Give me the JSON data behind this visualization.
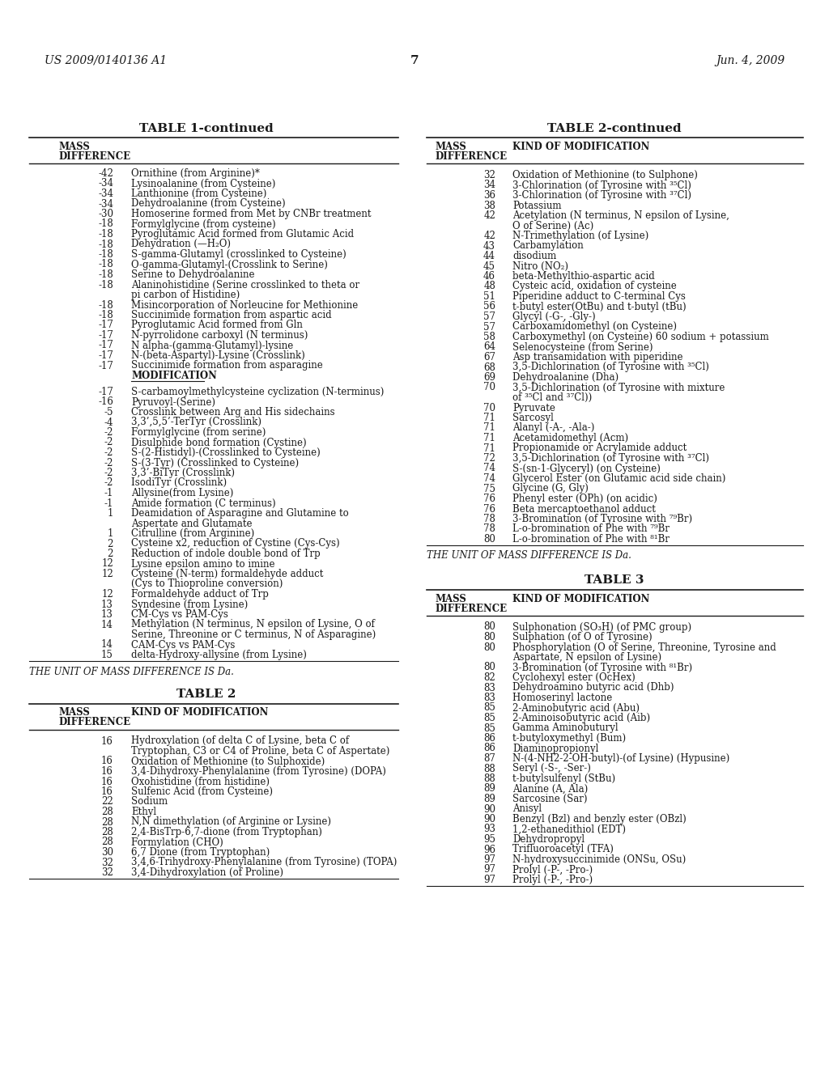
{
  "header_left": "US 2009/0140136 A1",
  "header_center": "7",
  "header_right": "Jun. 4, 2009",
  "bg_color": "#ffffff",
  "table1_continued_title": "TABLE 1-continued",
  "table1_col1_header": "MASS\nDIFFERENCE",
  "table1_rows": [
    [
      "-42",
      "Ornithine (from Arginine)*"
    ],
    [
      "-34",
      "Lysinoalanine (from Cysteine)"
    ],
    [
      "-34",
      "Lanthionine (from Cysteine)"
    ],
    [
      "-34",
      "Dehydroalanine (from Cysteine)"
    ],
    [
      "-30",
      "Homoserine formed from Met by CNBr treatment"
    ],
    [
      "-18",
      "Formylglycine (from cysteine)"
    ],
    [
      "-18",
      "Pyroglutamic Acid formed from Glutamic Acid"
    ],
    [
      "-18",
      "Dehydration (—H₂O)"
    ],
    [
      "-18",
      "S-gamma-Glutamyl (crosslinked to Cysteine)"
    ],
    [
      "-18",
      "O-gamma-Glutamyl-(Crosslink to Serine)"
    ],
    [
      "-18",
      "Serine to Dehydroalanine"
    ],
    [
      "-18",
      "Alaninohistidine (Serine crosslinked to theta or\npi carbon of Histidine)"
    ],
    [
      "-18",
      "Misincorporation of Norleucine for Methionine"
    ],
    [
      "-18",
      "Succinimide formation from aspartic acid"
    ],
    [
      "-17",
      "Pyroglutamic Acid formed from Gln"
    ],
    [
      "-17",
      "N-pyrrolidone carboxyl (N terminus)"
    ],
    [
      "-17",
      "N alpha-(gamma-Glutamyl)-lysine"
    ],
    [
      "-17",
      "N-(beta-Aspartyl)-Lysine (Crosslink)"
    ],
    [
      "-17",
      "Succinimide formation from asparagine"
    ],
    [
      "MOD",
      "MODIFICATION"
    ],
    [
      "BLANK",
      ""
    ],
    [
      "-17",
      "S-carbamoylmethylcysteine cyclization (N-terminus)"
    ],
    [
      "-16",
      "Pyruvoyl-(Serine)"
    ],
    [
      "-5",
      "Crosslink between Arg and His sidechains"
    ],
    [
      "-4",
      "3,3’,5,5’-TerTyr (Crosslink)"
    ],
    [
      "-2",
      "Formylglycine (from serine)"
    ],
    [
      "-2",
      "Disulphide bond formation (Cystine)"
    ],
    [
      "-2",
      "S-(2-Histidyl)-(Crosslinked to Cysteine)"
    ],
    [
      "-2",
      "S-(3-Tyr) (Crosslinked to Cysteine)"
    ],
    [
      "-2",
      "3,3’-BiTyr (Crosslink)"
    ],
    [
      "-2",
      "IsodiTyr (Crosslink)"
    ],
    [
      "-1",
      "Allysine(from Lysine)"
    ],
    [
      "-1",
      "Amide formation (C terminus)"
    ],
    [
      "1",
      "Deamidation of Asparagine and Glutamine to\nAspertate and Glutamate"
    ],
    [
      "1",
      "Citrulline (from Arginine)"
    ],
    [
      "2",
      "Cysteine x2, reduction of Cystine (Cys-Cys)"
    ],
    [
      "2",
      "Reduction of indole double bond of Trp"
    ],
    [
      "12",
      "Lysine epsilon amino to imine"
    ],
    [
      "12",
      "Cysteine (N-term) formaldehyde adduct\n(Cys to Thioproline conversion)"
    ],
    [
      "12",
      "Formaldehyde adduct of Trp"
    ],
    [
      "13",
      "Syndesine (from Lysine)"
    ],
    [
      "13",
      "CM-Cys vs PAM-Cys"
    ],
    [
      "14",
      "Methylation (N terminus, N epsilon of Lysine, O of\nSerine, Threonine or C terminus, N of Asparagine)"
    ],
    [
      "14",
      "CAM-Cys vs PAM-Cys"
    ],
    [
      "15",
      "delta-Hydroxy-allysine (from Lysine)"
    ]
  ],
  "table1_footer": "THE UNIT OF MASS DIFFERENCE IS Da.",
  "table2_title": "TABLE 2",
  "table2_col1_header": "MASS\nDIFFERENCE",
  "table2_col2_header": "KIND OF MODIFICATION",
  "table2_rows": [
    [
      "16",
      "Hydroxylation (of delta C of Lysine, beta C of\nTryptophan, C3 or C4 of Proline, beta C of Aspertate)"
    ],
    [
      "16",
      "Oxidation of Methionine (to Sulphoxide)"
    ],
    [
      "16",
      "3,4-Dihydroxy-Phenylalanine (from Tyrosine) (DOPA)"
    ],
    [
      "16",
      "Oxohistidine (from histidine)"
    ],
    [
      "16",
      "Sulfenic Acid (from Cysteine)"
    ],
    [
      "22",
      "Sodium"
    ],
    [
      "28",
      "Ethyl"
    ],
    [
      "28",
      "N,N dimethylation (of Arginine or Lysine)"
    ],
    [
      "28",
      "2,4-BisTrp-6,7-dione (from Tryptophan)"
    ],
    [
      "28",
      "Formylation (CHO)"
    ],
    [
      "30",
      "6,7 Dione (from Tryptophan)"
    ],
    [
      "32",
      "3,4,6-Trihydroxy-Phenylalanine (from Tyrosine) (TOPA)"
    ],
    [
      "32",
      "3,4-Dihydroxylation (of Proline)"
    ]
  ],
  "table2_continued_title": "TABLE 2-continued",
  "table2_continued_col1_header": "MASS\nDIFFERENCE",
  "table2_continued_col2_header": "KIND OF MODIFICATION",
  "table2_continued_rows": [
    [
      "32",
      "Oxidation of Methionine (to Sulphone)"
    ],
    [
      "34",
      "3-Chlorination (of Tyrosine with ³⁵Cl)"
    ],
    [
      "36",
      "3-Chlorination (of Tyrosine with ³⁷Cl)"
    ],
    [
      "38",
      "Potassium"
    ],
    [
      "42",
      "Acetylation (N terminus, N epsilon of Lysine,\nO of Serine) (Ac)"
    ],
    [
      "42",
      "N-Trimethylation (of Lysine)"
    ],
    [
      "43",
      "Carbamylation"
    ],
    [
      "44",
      "disodium"
    ],
    [
      "45",
      "Nitro (NO₂)"
    ],
    [
      "46",
      "beta-Methylthio-aspartic acid"
    ],
    [
      "48",
      "Cysteic acid, oxidation of cysteine"
    ],
    [
      "51",
      "Piperidine adduct to C-terminal Cys"
    ],
    [
      "56",
      "t-butyl ester(OtBu) and t-butyl (tBu)"
    ],
    [
      "57",
      "Glycyl (-G-, -Gly-)"
    ],
    [
      "57",
      "Carboxamidomethyl (on Cysteine)"
    ],
    [
      "58",
      "Carboxymethyl (on Cysteine) 60 sodium + potassium"
    ],
    [
      "64",
      "Selenocysteine (from Serine)"
    ],
    [
      "67",
      "Asp transamidation with piperidine"
    ],
    [
      "68",
      "3,5-Dichlorination (of Tyrosine with ³⁵Cl)"
    ],
    [
      "69",
      "Dehydroalanine (Dha)"
    ],
    [
      "70",
      "3,5-Dichlorination (of Tyrosine with mixture\nof ³⁵Cl and ³⁷Cl))"
    ],
    [
      "70",
      "Pyruvate"
    ],
    [
      "71",
      "Sarcosyl"
    ],
    [
      "71",
      "Alanyl (-A-, -Ala-)"
    ],
    [
      "71",
      "Acetamidomethyl (Acm)"
    ],
    [
      "71",
      "Propionamide or Acrylamide adduct"
    ],
    [
      "72",
      "3,5-Dichlorination (of Tyrosine with ³⁷Cl)"
    ],
    [
      "74",
      "S-(sn-1-Glyceryl) (on Cysteine)"
    ],
    [
      "74",
      "Glycerol Ester (on Glutamic acid side chain)"
    ],
    [
      "75",
      "Glycine (G, Gly)"
    ],
    [
      "76",
      "Phenyl ester (OPh) (on acidic)"
    ],
    [
      "76",
      "Beta mercaptoethanol adduct"
    ],
    [
      "78",
      "3-Bromination (of Tyrosine with ⁷⁹Br)"
    ],
    [
      "78",
      "L-o-bromination of Phe with ⁷⁹Br"
    ],
    [
      "80",
      "L-o-bromination of Phe with ⁸¹Br"
    ]
  ],
  "table2_footer": "THE UNIT OF MASS DIFFERENCE IS Da.",
  "table3_title": "TABLE 3",
  "table3_col1_header": "MASS\nDIFFERENCE",
  "table3_col2_header": "KIND OF MODIFICATION",
  "table3_rows": [
    [
      "80",
      "Sulphonation (SO₃H) (of PMC group)"
    ],
    [
      "80",
      "Sulphation (of O of Tyrosine)"
    ],
    [
      "80",
      "Phosphorylation (O of Serine, Threonine, Tyrosine and\nAspartate, N epsilon of Lysine)"
    ],
    [
      "80",
      "3-Bromination (of Tyrosine with ⁸¹Br)"
    ],
    [
      "82",
      "Cyclohexyl ester (OcHex)"
    ],
    [
      "83",
      "Dehydroamino butyric acid (Dhb)"
    ],
    [
      "83",
      "Homoserinyl lactone"
    ],
    [
      "85",
      "2-Aminobutyric acid (Abu)"
    ],
    [
      "85",
      "2-Aminoisobutyric acid (Aib)"
    ],
    [
      "85",
      "Gamma Aminobuturyl"
    ],
    [
      "86",
      "t-butyloxymethyl (Bum)"
    ],
    [
      "86",
      "Diaminopropionyl"
    ],
    [
      "87",
      "N-(4-NH2-2-OH-butyl)-(of Lysine) (Hypusine)"
    ],
    [
      "88",
      "Seryl (-S-, -Ser-)"
    ],
    [
      "88",
      "t-butylsulfenyl (StBu)"
    ],
    [
      "89",
      "Alanine (A, Ala)"
    ],
    [
      "89",
      "Sarcosine (Sar)"
    ],
    [
      "90",
      "Anisyl"
    ],
    [
      "90",
      "Benzyl (Bzl) and benzly ester (OBzl)"
    ],
    [
      "93",
      "1,2-ethanedithiol (EDT)"
    ],
    [
      "95",
      "Dehydropropyl"
    ],
    [
      "96",
      "Trifluoroacetyl (TFA)"
    ],
    [
      "97",
      "N-hydroxysuccinimide (ONSu, OSu)"
    ],
    [
      "97",
      "Prolyl (-P-, -Pro-)"
    ],
    [
      "97",
      "Prolyl (-P-, -Pro-)"
    ]
  ]
}
